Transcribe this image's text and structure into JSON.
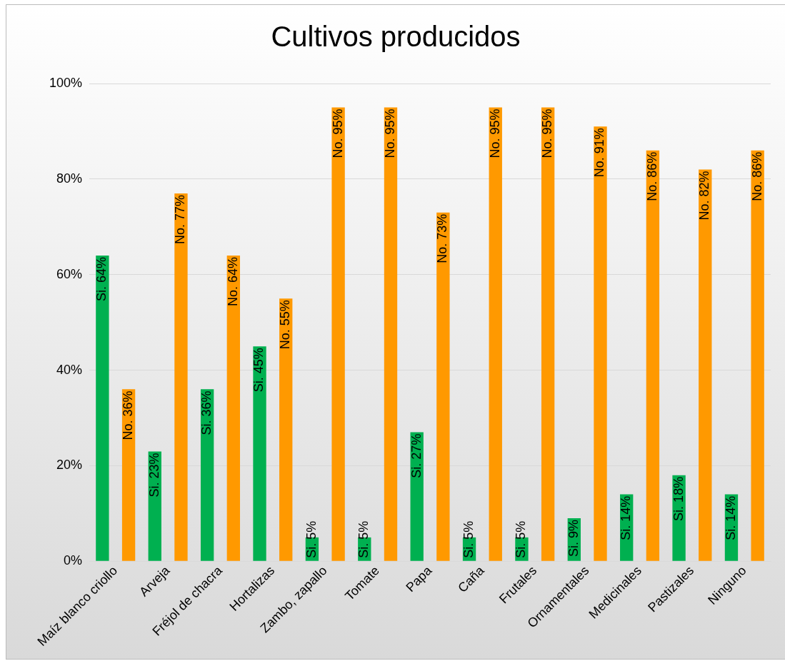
{
  "chart_data": {
    "type": "bar",
    "title": "Cultivos producidos",
    "categories": [
      "Maíz blanco criollo",
      "Arveja",
      "Fréjol de chacra",
      "Hortalizas",
      "Zambo, zapallo",
      "Tomate",
      "Papa",
      "Caña",
      "Frutales",
      "Ornamentales",
      "Medicinales",
      "Pastizales",
      "Ninguno"
    ],
    "series": [
      {
        "color": "#00b050",
        "values": [
          64,
          23,
          36,
          45,
          5,
          5,
          27,
          5,
          5,
          9,
          14,
          18,
          14
        ],
        "value_labels": [
          "Si. 64%",
          "Si. 23%",
          "Si. 36%",
          "Si. 45%",
          "Si. 5%",
          "Si. 5%",
          "Si. 27%",
          "Si. 5%",
          "Si. 5%",
          "Si. 9%",
          "Si. 14%",
          "Si. 18%",
          "Si. 14%"
        ]
      },
      {
        "color": "#ff9900",
        "values": [
          36,
          77,
          64,
          55,
          95,
          95,
          73,
          95,
          95,
          91,
          86,
          82,
          86
        ],
        "value_labels": [
          "No. 36%",
          "No. 77%",
          "No. 64%",
          "No. 55%",
          "No. 95%",
          "No. 95%",
          "No. 73%",
          "No. 95%",
          "No. 95%",
          "No. 91%",
          "No. 86%",
          "No. 82%",
          "No. 86%"
        ]
      }
    ],
    "ylim": [
      0,
      100
    ],
    "yticks": [
      {
        "value": 0,
        "label": "0%"
      },
      {
        "value": 20,
        "label": "20%"
      },
      {
        "value": 40,
        "label": "40%"
      },
      {
        "value": 60,
        "label": "60%"
      },
      {
        "value": 80,
        "label": "80%"
      },
      {
        "value": 100,
        "label": "100%"
      }
    ],
    "grid": "y",
    "legend": false
  }
}
